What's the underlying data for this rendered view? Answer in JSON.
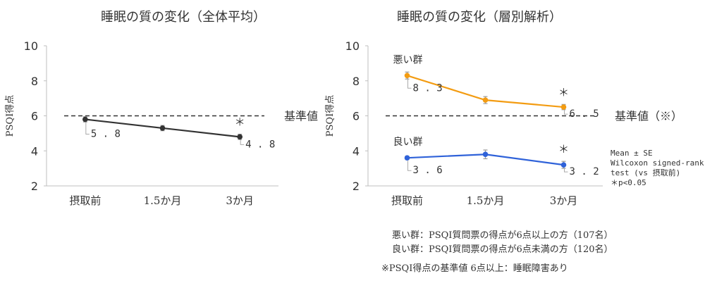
{
  "chart_data": [
    {
      "type": "line",
      "title": "睡眠の質の変化（全体平均）",
      "ylabel": "PSQI得点",
      "categories": [
        "摂取前",
        "1.5か月",
        "3か月"
      ],
      "yticks": [
        "2",
        "4",
        "6",
        "8",
        "10"
      ],
      "ylim": [
        2,
        10
      ],
      "series": [
        {
          "values": [
            5.8,
            5.3,
            4.8
          ],
          "errors": [
            0.15,
            0.15,
            0.15
          ],
          "color": "#333333",
          "labels": [
            "5.8",
            "",
            "4.8"
          ],
          "significance": [
            "",
            "",
            "＊"
          ]
        }
      ],
      "reference_line": {
        "value": 6,
        "label": "基準値"
      }
    },
    {
      "type": "line",
      "title": "睡眠の質の変化（層別解析）",
      "ylabel": "PSQI得点",
      "categories": [
        "摂取前",
        "1.5か月",
        "3か月"
      ],
      "yticks": [
        "2",
        "4",
        "6",
        "8",
        "10"
      ],
      "ylim": [
        2,
        10
      ],
      "series": [
        {
          "name": "悪い群",
          "values": [
            8.3,
            6.9,
            6.5
          ],
          "errors": [
            0.2,
            0.2,
            0.15
          ],
          "color": "#f39c12",
          "labels": [
            "8.3",
            "",
            "6.5"
          ],
          "significance": [
            "",
            "",
            "＊"
          ]
        },
        {
          "name": "良い群",
          "values": [
            3.6,
            3.8,
            3.2
          ],
          "errors": [
            0.1,
            0.25,
            0.2
          ],
          "color": "#2f62d9",
          "labels": [
            "3.6",
            "",
            "3.2"
          ],
          "significance": [
            "",
            "",
            "＊"
          ]
        }
      ],
      "reference_line": {
        "value": 6,
        "label": "基準値（※）"
      }
    }
  ],
  "stats_note": [
    "Mean ± SE",
    "Wilcoxon signed-rank",
    " test (vs 摂取前)",
    "＊p<0.05"
  ],
  "notes": {
    "bad_group": "悪い群：PSQI質問票の得点が6点以上の方（107名）",
    "good_group": "良い群：PSQI質問票の得点が6点未満の方（120名）",
    "standard": "※PSQI得点の基準値 6点以上：睡眠障害あり"
  }
}
